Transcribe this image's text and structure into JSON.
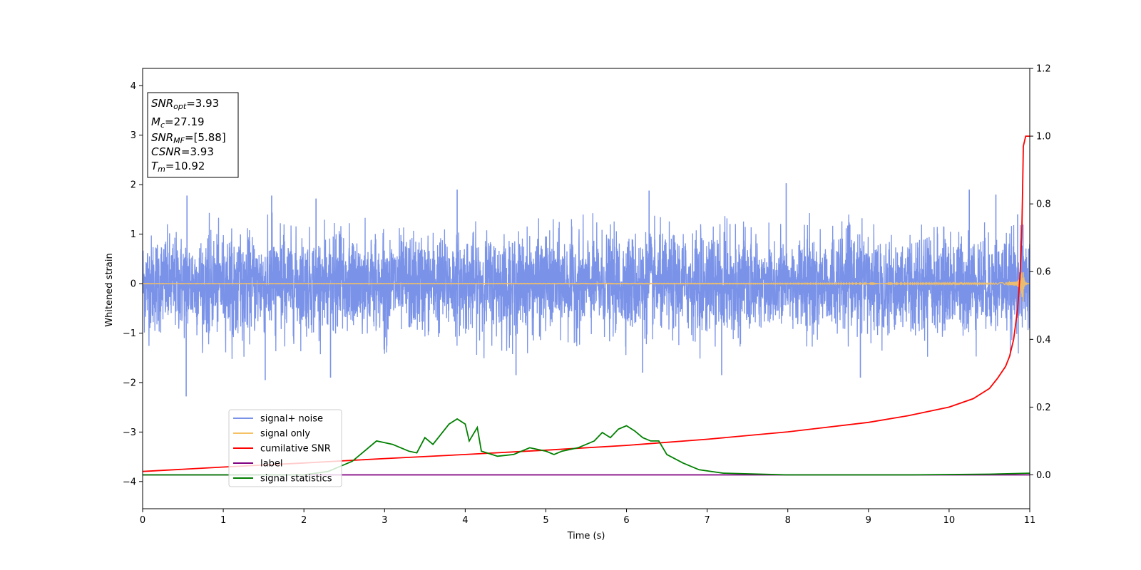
{
  "chart_data": {
    "type": "line",
    "xlabel": "Time (s)",
    "ylabel": "Whitened strain",
    "xlim": [
      0,
      11
    ],
    "ylim": [
      -4.55,
      4.35
    ],
    "y2lim": [
      -0.1,
      1.2
    ],
    "x_ticks": [
      0,
      1,
      2,
      3,
      4,
      5,
      6,
      7,
      8,
      9,
      10,
      11
    ],
    "y_ticks": [
      -4,
      -3,
      -2,
      -1,
      0,
      1,
      2,
      3,
      4
    ],
    "y2_ticks": [
      0.0,
      0.2,
      0.4,
      0.6,
      0.8,
      1.0,
      1.2
    ],
    "grid": false,
    "legend_position": "lower-left",
    "annotation": {
      "lines": [
        {
          "base": "SNR",
          "sub": "opt",
          "value": "=3.93"
        },
        {
          "base": "M",
          "sub": "c",
          "value": "=27.19"
        },
        {
          "base": "SNR",
          "sub": "MF",
          "value": "=[5.88]"
        },
        {
          "base": "CSNR",
          "sub": "",
          "value": "=3.93"
        },
        {
          "base": "T",
          "sub": "m",
          "value": "=10.92"
        }
      ]
    },
    "series": [
      {
        "name": "signal+ noise",
        "color": "#7a93e8",
        "axis": "left",
        "kind": "noise",
        "typical_amplitude": 1.0,
        "peaks": [
          {
            "x": 0.54,
            "y": -2.28
          },
          {
            "x": 0.55,
            "y": 1.78
          },
          {
            "x": 1.6,
            "y": 1.78
          },
          {
            "x": 1.52,
            "y": -1.95
          },
          {
            "x": 2.15,
            "y": 1.72
          },
          {
            "x": 2.33,
            "y": -1.9
          },
          {
            "x": 3.9,
            "y": 1.9
          },
          {
            "x": 4.63,
            "y": -1.85
          },
          {
            "x": 6.28,
            "y": 1.88
          },
          {
            "x": 6.2,
            "y": -1.8
          },
          {
            "x": 7.98,
            "y": 2.03
          },
          {
            "x": 7.18,
            "y": -1.85
          },
          {
            "x": 8.9,
            "y": -1.9
          },
          {
            "x": 10.25,
            "y": 1.9
          },
          {
            "x": 10.58,
            "y": 1.8
          },
          {
            "x": 10.85,
            "y": 1.4
          }
        ]
      },
      {
        "name": "signal only",
        "color": "#f5c163",
        "axis": "left",
        "kind": "chirp",
        "merger_time": 10.92,
        "peak_amplitude": 0.42
      },
      {
        "name": "cumilative SNR",
        "color": "#ff0000",
        "axis": "right",
        "kind": "line",
        "points": [
          [
            0,
            0.01
          ],
          [
            1,
            0.023
          ],
          [
            2,
            0.035
          ],
          [
            3,
            0.048
          ],
          [
            4,
            0.06
          ],
          [
            5,
            0.073
          ],
          [
            6,
            0.087
          ],
          [
            7,
            0.105
          ],
          [
            8,
            0.127
          ],
          [
            9,
            0.155
          ],
          [
            9.5,
            0.175
          ],
          [
            10,
            0.2
          ],
          [
            10.3,
            0.225
          ],
          [
            10.5,
            0.255
          ],
          [
            10.6,
            0.285
          ],
          [
            10.7,
            0.32
          ],
          [
            10.75,
            0.35
          ],
          [
            10.8,
            0.4
          ],
          [
            10.85,
            0.49
          ],
          [
            10.88,
            0.59
          ],
          [
            10.9,
            0.7
          ],
          [
            10.91,
            0.82
          ],
          [
            10.92,
            0.97
          ],
          [
            10.95,
            1.0
          ],
          [
            11,
            1.0
          ]
        ]
      },
      {
        "name": "label",
        "color": "#800080",
        "axis": "right",
        "kind": "line",
        "points": [
          [
            0,
            0.0
          ],
          [
            11,
            0.0
          ]
        ]
      },
      {
        "name": "signal statistics",
        "color": "#008000",
        "axis": "right",
        "kind": "line",
        "points": [
          [
            0,
            0.0
          ],
          [
            2.0,
            0.0
          ],
          [
            2.3,
            0.01
          ],
          [
            2.6,
            0.04
          ],
          [
            2.75,
            0.07
          ],
          [
            2.9,
            0.1
          ],
          [
            3.0,
            0.095
          ],
          [
            3.1,
            0.09
          ],
          [
            3.2,
            0.08
          ],
          [
            3.3,
            0.07
          ],
          [
            3.4,
            0.065
          ],
          [
            3.5,
            0.11
          ],
          [
            3.6,
            0.09
          ],
          [
            3.7,
            0.12
          ],
          [
            3.8,
            0.15
          ],
          [
            3.9,
            0.165
          ],
          [
            4.0,
            0.15
          ],
          [
            4.05,
            0.1
          ],
          [
            4.15,
            0.14
          ],
          [
            4.2,
            0.07
          ],
          [
            4.4,
            0.055
          ],
          [
            4.6,
            0.06
          ],
          [
            4.8,
            0.08
          ],
          [
            5.0,
            0.07
          ],
          [
            5.1,
            0.06
          ],
          [
            5.2,
            0.07
          ],
          [
            5.4,
            0.08
          ],
          [
            5.6,
            0.1
          ],
          [
            5.7,
            0.125
          ],
          [
            5.8,
            0.11
          ],
          [
            5.9,
            0.135
          ],
          [
            6.0,
            0.145
          ],
          [
            6.1,
            0.13
          ],
          [
            6.2,
            0.11
          ],
          [
            6.3,
            0.1
          ],
          [
            6.4,
            0.1
          ],
          [
            6.5,
            0.06
          ],
          [
            6.7,
            0.035
          ],
          [
            6.9,
            0.015
          ],
          [
            7.2,
            0.005
          ],
          [
            8.0,
            0.0
          ],
          [
            9.5,
            0.0
          ],
          [
            10.5,
            0.002
          ],
          [
            11.0,
            0.005
          ]
        ]
      }
    ]
  }
}
